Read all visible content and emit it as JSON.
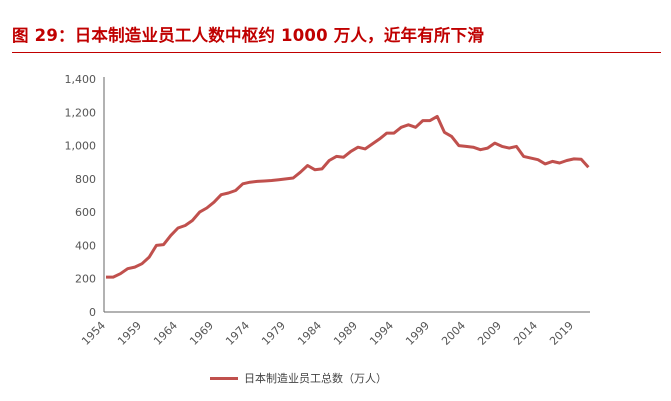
{
  "title": "图 29：日本制造业员工人数中枢约 1000 万人，近年有所下滑",
  "chart_data": {
    "type": "line",
    "title": "图 29：日本制造业员工人数中枢约 1000 万人，近年有所下滑",
    "xlabel": "",
    "ylabel": "",
    "ylim": [
      0,
      1400
    ],
    "yticks": [
      0,
      200,
      400,
      600,
      800,
      1000,
      1200,
      1400
    ],
    "ytick_labels": [
      "0",
      "200",
      "400",
      "600",
      "800",
      "1,000",
      "1,200",
      "1,400"
    ],
    "xtick_labels": [
      "1954",
      "1959",
      "1964",
      "1969",
      "1974",
      "1979",
      "1984",
      "1989",
      "1994",
      "1999",
      "2004",
      "2009",
      "2014",
      "2019"
    ],
    "grid": false,
    "legend": "bottom",
    "color": "#c0504d",
    "series": [
      {
        "name": "日本制造业员工总数（万人）",
        "x": [
          1954,
          1955,
          1956,
          1957,
          1958,
          1959,
          1960,
          1961,
          1962,
          1963,
          1964,
          1965,
          1966,
          1967,
          1968,
          1969,
          1970,
          1971,
          1972,
          1973,
          1974,
          1975,
          1976,
          1977,
          1978,
          1979,
          1980,
          1981,
          1982,
          1983,
          1984,
          1985,
          1986,
          1987,
          1988,
          1989,
          1990,
          1991,
          1992,
          1993,
          1994,
          1995,
          1996,
          1997,
          1998,
          1999,
          2000,
          2001,
          2002,
          2003,
          2004,
          2005,
          2006,
          2007,
          2008,
          2009,
          2010,
          2011,
          2012,
          2013,
          2014,
          2015,
          2016,
          2017,
          2018,
          2019,
          2020,
          2021
        ],
        "values": [
          210,
          210,
          230,
          260,
          270,
          290,
          330,
          400,
          405,
          460,
          505,
          520,
          550,
          600,
          625,
          660,
          705,
          715,
          730,
          770,
          780,
          785,
          787,
          790,
          795,
          800,
          805,
          840,
          880,
          855,
          860,
          910,
          935,
          930,
          965,
          990,
          980,
          1010,
          1040,
          1075,
          1075,
          1110,
          1125,
          1110,
          1150,
          1150,
          1175,
          1080,
          1055,
          1000,
          995,
          990,
          975,
          985,
          1015,
          995,
          985,
          995,
          935,
          925,
          915,
          890,
          905,
          895,
          910,
          920,
          918,
          870
        ]
      }
    ]
  }
}
